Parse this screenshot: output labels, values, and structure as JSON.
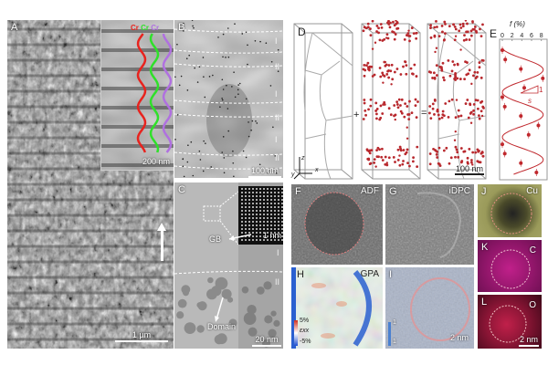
{
  "panels": {
    "A": {
      "label": "A",
      "inset_scale": "200 nm",
      "scale": "1 µm",
      "line_labels": [
        "Cr",
        "Cr",
        "Cr"
      ],
      "line_colors": [
        "#e8231e",
        "#2fe02a",
        "#b070e0"
      ]
    },
    "B": {
      "label": "B",
      "scale": "100 nm",
      "regions": [
        "I",
        "II",
        "I",
        "II",
        "I",
        "II"
      ]
    },
    "C": {
      "label": "C",
      "inset_scale": "1 nm",
      "scale": "20 nm",
      "gb": "GB",
      "domain": "Domain",
      "regions": [
        "I",
        "II"
      ]
    },
    "D": {
      "label": "D",
      "plus": "+",
      "equals": "=",
      "scale": "100 nm",
      "axes": [
        "z",
        "y",
        "x"
      ]
    },
    "E": {
      "label": "E",
      "slope_labels": [
        "1",
        "s"
      ]
    },
    "F": {
      "label": "F",
      "title": "ADF"
    },
    "G": {
      "label": "G",
      "title": "iDPC"
    },
    "H": {
      "label": "H",
      "title": "GPA",
      "cbar_max": "5%",
      "cbar_min": "-5%",
      "cbar_var": "εxx"
    },
    "I": {
      "label": "I",
      "scale": "2 nm",
      "cbar": [
        "1",
        "1"
      ]
    },
    "J": {
      "label": "J",
      "element": "Cu"
    },
    "K": {
      "label": "K",
      "element": "C"
    },
    "L": {
      "label": "L",
      "element": "O",
      "scale": "2 nm"
    }
  },
  "chart_data": {
    "type": "line",
    "title": "",
    "xlabel": "f (%)",
    "ylabel": "",
    "xlim": [
      0,
      9
    ],
    "xticks": [
      0,
      2,
      4,
      6,
      8
    ],
    "points_top_to_bottom": [
      0,
      0.6,
      3.8,
      8.3,
      4.5,
      0,
      0.5,
      3.8,
      7.4,
      5.4,
      0,
      0.5,
      3.8,
      7.0
    ],
    "color": "#c0282d"
  }
}
